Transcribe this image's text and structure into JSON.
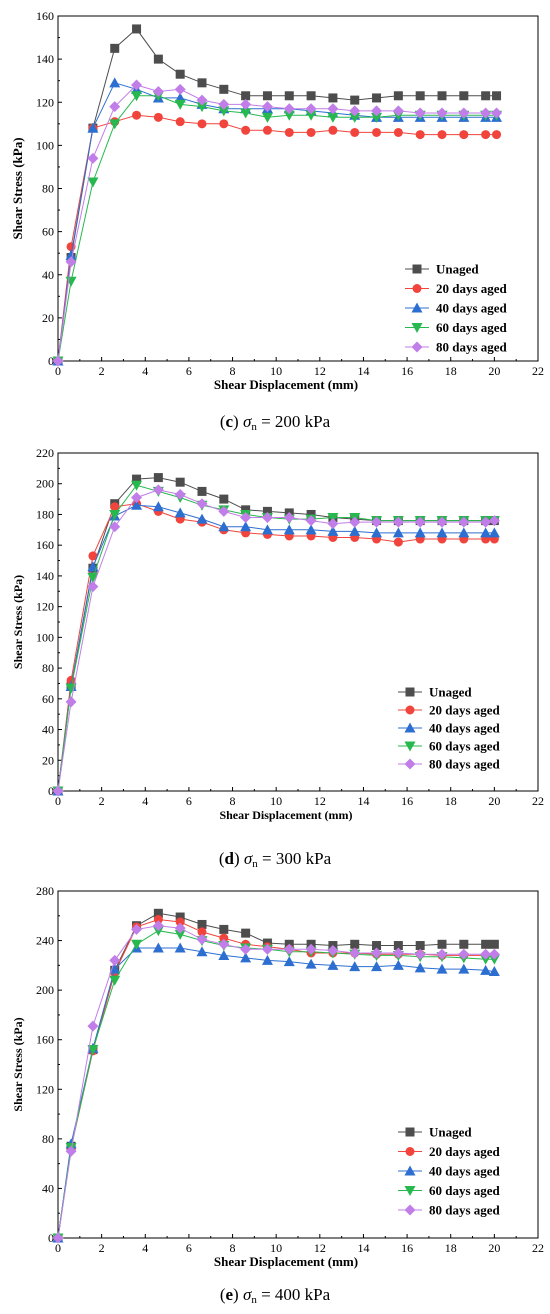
{
  "colors": {
    "Unaged": "#4d4d4d",
    "20 days aged": "#f0443c",
    "40 days aged": "#2d6fd1",
    "60 days aged": "#27b84e",
    "80 days aged": "#c17ee8"
  },
  "markers": {
    "Unaged": "square",
    "20 days aged": "circle",
    "40 days aged": "triangle-up",
    "60 days aged": "triangle-down",
    "80 days aged": "diamond"
  },
  "chart_data": [
    {
      "type": "line",
      "caption": {
        "letter": "c",
        "sigma": "σ",
        "sub": "n",
        "rest": " = 200 kPa"
      },
      "xlabel": "Shear Displacement (mm)",
      "ylabel": "Shear Stress (kPa)",
      "xlim": [
        0,
        22
      ],
      "ylim": [
        0,
        160
      ],
      "xticks": [
        "0",
        "2",
        "4",
        "6",
        "8",
        "10",
        "12",
        "14",
        "16",
        "18",
        "20",
        "22"
      ],
      "yticks": [
        "0",
        "20",
        "40",
        "60",
        "80",
        "100",
        "120",
        "140",
        "160"
      ],
      "legend": "bottom-right",
      "x": [
        0,
        0.6,
        1.6,
        2.6,
        3.6,
        4.6,
        5.6,
        6.6,
        7.6,
        8.6,
        9.6,
        10.6,
        11.6,
        12.6,
        13.6,
        14.6,
        15.6,
        16.6,
        17.6,
        18.6,
        19.6,
        20.1
      ],
      "series": [
        {
          "name": "Unaged",
          "values": [
            0,
            48,
            108,
            145,
            154,
            140,
            133,
            129,
            126,
            123,
            123,
            123,
            123,
            122,
            121,
            122,
            123,
            123,
            123,
            123,
            123,
            123
          ]
        },
        {
          "name": "20 days aged",
          "values": [
            0,
            53,
            108,
            111,
            114,
            113,
            111,
            110,
            110,
            107,
            107,
            106,
            106,
            107,
            106,
            106,
            106,
            105,
            105,
            105,
            105,
            105
          ]
        },
        {
          "name": "40 days aged",
          "values": [
            0,
            49,
            108,
            129,
            126,
            122,
            122,
            119,
            117,
            117,
            117,
            117,
            116,
            115,
            114,
            113,
            113,
            113,
            113,
            113,
            113,
            113
          ]
        },
        {
          "name": "60 days aged",
          "values": [
            0,
            37,
            83,
            110,
            123,
            123,
            119,
            118,
            116,
            115,
            113,
            114,
            114,
            113,
            113,
            113,
            114,
            114,
            114,
            114,
            114,
            114
          ]
        },
        {
          "name": "80 days aged",
          "values": [
            0,
            46,
            94,
            118,
            128,
            125,
            126,
            121,
            119,
            119,
            118,
            117,
            117,
            117,
            116,
            116,
            116,
            115,
            115,
            115,
            115,
            115
          ]
        }
      ]
    },
    {
      "type": "line",
      "caption": {
        "letter": "d",
        "sigma": "σ",
        "sub": "n",
        "rest": " = 300 kPa"
      },
      "xlabel": "Shear Displacement (mm)",
      "ylabel": "Shear Stress (kPa)",
      "xlim": [
        0,
        22
      ],
      "ylim": [
        0,
        220
      ],
      "xticks": [
        "0",
        "2",
        "4",
        "6",
        "8",
        "10",
        "12",
        "14",
        "16",
        "18",
        "20",
        "22"
      ],
      "yticks": [
        "0",
        "20",
        "40",
        "60",
        "80",
        "100",
        "120",
        "140",
        "160",
        "180",
        "200",
        "220"
      ],
      "legend": "bottom-right",
      "x": [
        0,
        0.6,
        1.6,
        2.6,
        3.6,
        4.6,
        5.6,
        6.6,
        7.6,
        8.6,
        9.6,
        10.6,
        11.6,
        12.6,
        13.6,
        14.6,
        15.6,
        16.6,
        17.6,
        18.6,
        19.6,
        20.0
      ],
      "series": [
        {
          "name": "Unaged",
          "values": [
            0,
            68,
            145,
            187,
            203,
            204,
            201,
            195,
            190,
            183,
            182,
            181,
            180,
            178,
            177,
            176,
            176,
            176,
            176,
            176,
            176,
            176
          ]
        },
        {
          "name": "20 days aged",
          "values": [
            0,
            72,
            153,
            185,
            187,
            182,
            177,
            175,
            170,
            168,
            167,
            166,
            166,
            165,
            165,
            164,
            162,
            164,
            164,
            164,
            164,
            164
          ]
        },
        {
          "name": "40 days aged",
          "values": [
            0,
            68,
            146,
            179,
            186,
            185,
            181,
            177,
            172,
            172,
            170,
            170,
            170,
            169,
            169,
            168,
            168,
            168,
            168,
            168,
            168,
            168
          ]
        },
        {
          "name": "60 days aged",
          "values": [
            0,
            67,
            139,
            180,
            199,
            195,
            191,
            186,
            183,
            180,
            178,
            177,
            177,
            178,
            178,
            176,
            176,
            176,
            176,
            176,
            176,
            176
          ]
        },
        {
          "name": "80 days aged",
          "values": [
            0,
            58,
            133,
            172,
            191,
            196,
            193,
            187,
            182,
            178,
            178,
            178,
            176,
            174,
            175,
            175,
            175,
            175,
            175,
            175,
            175,
            176
          ]
        }
      ]
    },
    {
      "type": "line",
      "caption": {
        "letter": "e",
        "sigma": "σ",
        "sub": "n",
        "rest": " = 400 kPa"
      },
      "xlabel": "Shear Displacement (mm)",
      "ylabel": "Shear Stress (kPa)",
      "xlim": [
        0,
        22
      ],
      "ylim": [
        0,
        280
      ],
      "xticks": [
        "0",
        "2",
        "4",
        "6",
        "8",
        "10",
        "12",
        "14",
        "16",
        "18",
        "20",
        "22"
      ],
      "yticks": [
        "0",
        "40",
        "80",
        "120",
        "160",
        "200",
        "240",
        "280"
      ],
      "legend": "bottom-right",
      "x": [
        0,
        0.6,
        1.6,
        2.6,
        3.6,
        4.6,
        5.6,
        6.6,
        7.6,
        8.6,
        9.6,
        10.6,
        11.6,
        12.6,
        13.6,
        14.6,
        15.6,
        16.6,
        17.6,
        18.6,
        19.6,
        20.0
      ],
      "series": [
        {
          "name": "Unaged",
          "values": [
            0,
            74,
            152,
            216,
            252,
            262,
            259,
            253,
            249,
            246,
            238,
            237,
            237,
            236,
            237,
            236,
            236,
            236,
            237,
            237,
            237,
            237
          ]
        },
        {
          "name": "20 days aged",
          "values": [
            0,
            73,
            151,
            214,
            251,
            257,
            255,
            247,
            242,
            237,
            235,
            233,
            230,
            230,
            230,
            229,
            229,
            229,
            228,
            228,
            228,
            228
          ]
        },
        {
          "name": "40 days aged",
          "values": [
            0,
            76,
            153,
            217,
            234,
            234,
            234,
            231,
            228,
            226,
            224,
            223,
            221,
            220,
            219,
            219,
            220,
            218,
            217,
            217,
            216,
            215
          ]
        },
        {
          "name": "60 days aged",
          "values": [
            0,
            73,
            152,
            208,
            237,
            248,
            245,
            240,
            236,
            234,
            233,
            231,
            231,
            230,
            229,
            228,
            228,
            227,
            227,
            226,
            225,
            225
          ]
        },
        {
          "name": "80 days aged",
          "values": [
            0,
            70,
            171,
            224,
            249,
            252,
            250,
            241,
            237,
            233,
            233,
            233,
            233,
            232,
            230,
            230,
            230,
            229,
            229,
            229,
            229,
            229
          ]
        }
      ]
    }
  ]
}
